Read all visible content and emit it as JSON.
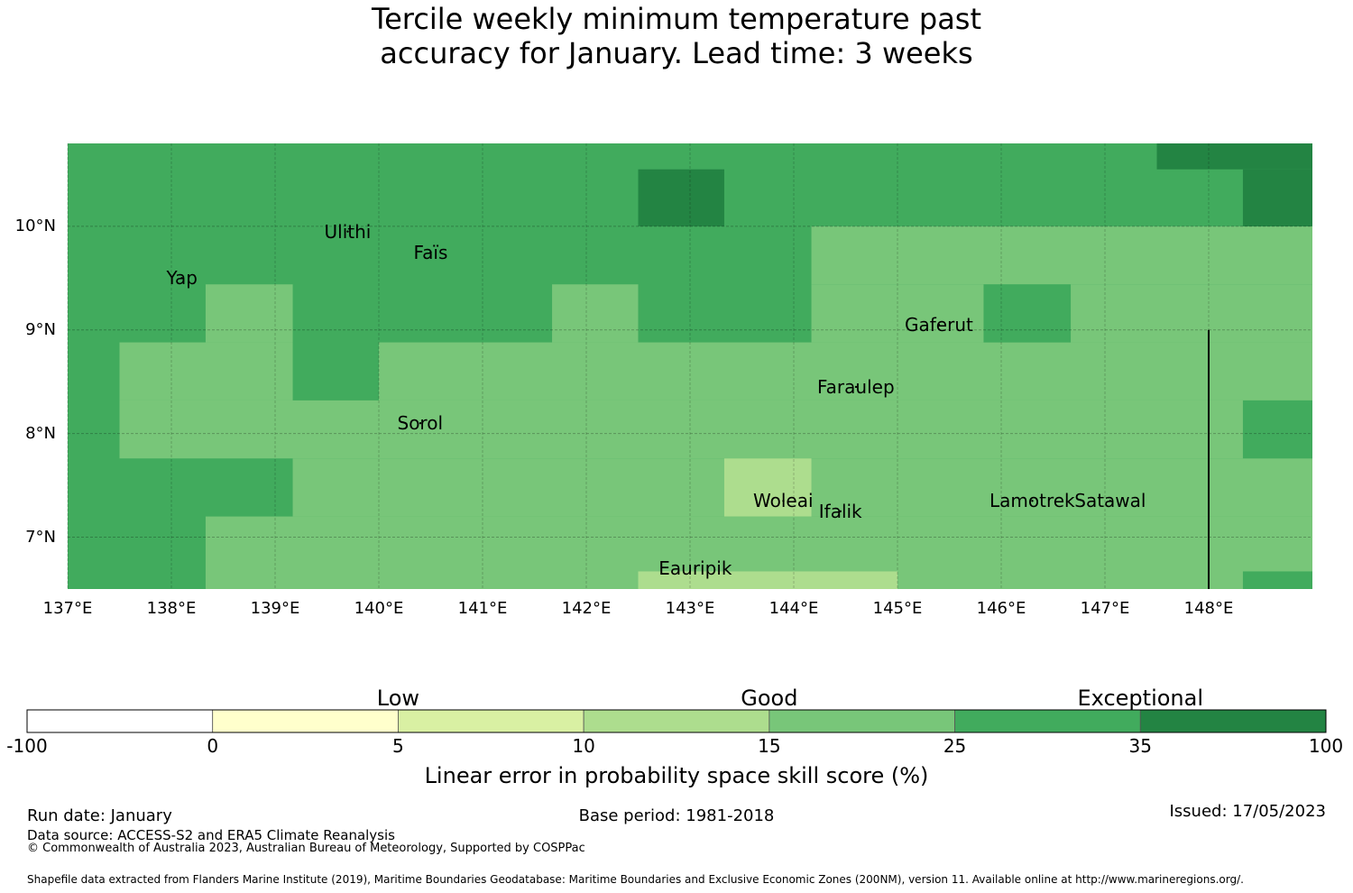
{
  "title": {
    "line1": "Tercile weekly minimum temperature past",
    "line2": "accuracy for January. Lead time: 3 weeks"
  },
  "map": {
    "lon_range": [
      137.0,
      149.0
    ],
    "lat_range": [
      6.5,
      10.8
    ],
    "lat_ticks": [
      {
        "value": 10,
        "label": "10°N"
      },
      {
        "value": 9,
        "label": "9°N"
      },
      {
        "value": 8,
        "label": "8°N"
      },
      {
        "value": 7,
        "label": "7°N"
      }
    ],
    "lon_ticks": [
      {
        "value": 137,
        "label": "137°E"
      },
      {
        "value": 138,
        "label": "138°E"
      },
      {
        "value": 139,
        "label": "139°E"
      },
      {
        "value": 140,
        "label": "140°E"
      },
      {
        "value": 141,
        "label": "141°E"
      },
      {
        "value": 142,
        "label": "142°E"
      },
      {
        "value": 143,
        "label": "143°E"
      },
      {
        "value": 144,
        "label": "144°E"
      },
      {
        "value": 145,
        "label": "145°E"
      },
      {
        "value": 146,
        "label": "146°E"
      },
      {
        "value": 147,
        "label": "147°E"
      },
      {
        "value": 148,
        "label": "148°E"
      }
    ],
    "places": [
      {
        "name": "Yap",
        "lon": 138.1,
        "lat": 9.5
      },
      {
        "name": "Ulithi",
        "lon": 139.7,
        "lat": 9.95
      },
      {
        "name": "Faïs",
        "lon": 140.5,
        "lat": 9.75
      },
      {
        "name": "Gaferut",
        "lon": 145.4,
        "lat": 9.05
      },
      {
        "name": "Faraulep",
        "lon": 144.6,
        "lat": 8.45
      },
      {
        "name": "Sorol",
        "lon": 140.4,
        "lat": 8.1
      },
      {
        "name": "Woleai",
        "lon": 143.9,
        "lat": 7.35
      },
      {
        "name": "Ifalik",
        "lon": 144.45,
        "lat": 7.25
      },
      {
        "name": "Lamotrek",
        "lon": 146.3,
        "lat": 7.35
      },
      {
        "name": "Satawal",
        "lon": 147.05,
        "lat": 7.35
      },
      {
        "name": "Eauripik",
        "lon": 143.05,
        "lat": 6.7
      }
    ],
    "eez_boundary_lon": 148.0,
    "cells": [
      {
        "lon": [
          137.0,
          149.0
        ],
        "lat": [
          6.5,
          10.8
        ],
        "category": 5
      },
      {
        "lon": [
          138.33,
          149.0
        ],
        "lat": [
          6.5,
          7.2
        ],
        "category": 4
      },
      {
        "lon": [
          139.17,
          149.0
        ],
        "lat": [
          7.2,
          7.76
        ],
        "category": 4
      },
      {
        "lon": [
          137.5,
          149.0
        ],
        "lat": [
          7.76,
          8.32
        ],
        "category": 4
      },
      {
        "lon": [
          137.5,
          139.17
        ],
        "lat": [
          8.32,
          8.88
        ],
        "category": 4
      },
      {
        "lon": [
          140.0,
          149.0
        ],
        "lat": [
          8.32,
          8.88
        ],
        "category": 4
      },
      {
        "lon": [
          138.33,
          139.17
        ],
        "lat": [
          8.88,
          9.44
        ],
        "category": 4
      },
      {
        "lon": [
          141.67,
          142.5
        ],
        "lat": [
          8.88,
          9.44
        ],
        "category": 4
      },
      {
        "lon": [
          144.17,
          149.0
        ],
        "lat": [
          8.88,
          9.44
        ],
        "category": 4
      },
      {
        "lon": [
          144.17,
          149.0
        ],
        "lat": [
          9.44,
          10.0
        ],
        "category": 4
      },
      {
        "lon": [
          145.83,
          146.67
        ],
        "lat": [
          8.88,
          9.44
        ],
        "category": 5
      },
      {
        "lon": [
          148.33,
          149.0
        ],
        "lat": [
          7.76,
          8.32
        ],
        "category": 5
      },
      {
        "lon": [
          148.33,
          149.0
        ],
        "lat": [
          6.5,
          6.67
        ],
        "category": 5
      },
      {
        "lon": [
          143.33,
          144.17
        ],
        "lat": [
          7.2,
          7.76
        ],
        "category": 3
      },
      {
        "lon": [
          142.5,
          145.0
        ],
        "lat": [
          6.5,
          6.67
        ],
        "category": 3
      },
      {
        "lon": [
          142.5,
          143.33
        ],
        "lat": [
          10.0,
          10.55
        ],
        "category": 6
      },
      {
        "lon": [
          147.5,
          149.0
        ],
        "lat": [
          10.55,
          10.8
        ],
        "category": 6
      },
      {
        "lon": [
          148.33,
          149.0
        ],
        "lat": [
          10.0,
          10.55
        ],
        "category": 6
      }
    ]
  },
  "colorbar": {
    "categories": [
      {
        "label": "Low",
        "from_index": 1,
        "to_index": 3
      },
      {
        "label": "Good",
        "from_index": 3,
        "to_index": 5
      },
      {
        "label": "Exceptional",
        "from_index": 5,
        "to_index": 7
      }
    ],
    "ticks": [
      "-100",
      "0",
      "5",
      "10",
      "15",
      "25",
      "35",
      "100"
    ],
    "colors": [
      "#ffffff",
      "#ffffcc",
      "#d9f0a3",
      "#addd8e",
      "#78c679",
      "#41ab5d",
      "#238443"
    ],
    "title": "Linear error in probability space skill score (%)"
  },
  "footer": {
    "run_date": "Run date: January",
    "base_period": "Base period: 1981-2018",
    "issued": "Issued: 17/05/2023",
    "data_source": "Data source: ACCESS-S2 and ERA5 Climate Reanalysis",
    "copyright": "© Commonwealth of Australia 2023, Australian Bureau of Meteorology, Supported by COSPPac",
    "shapefile": "Shapefile data extracted from Flanders Marine Institute (2019), Maritime Boundaries Geodatabase: Maritime Boundaries and Exclusive Economic Zones (200NM), version 11. Available online at http://www.marineregions.org/."
  }
}
